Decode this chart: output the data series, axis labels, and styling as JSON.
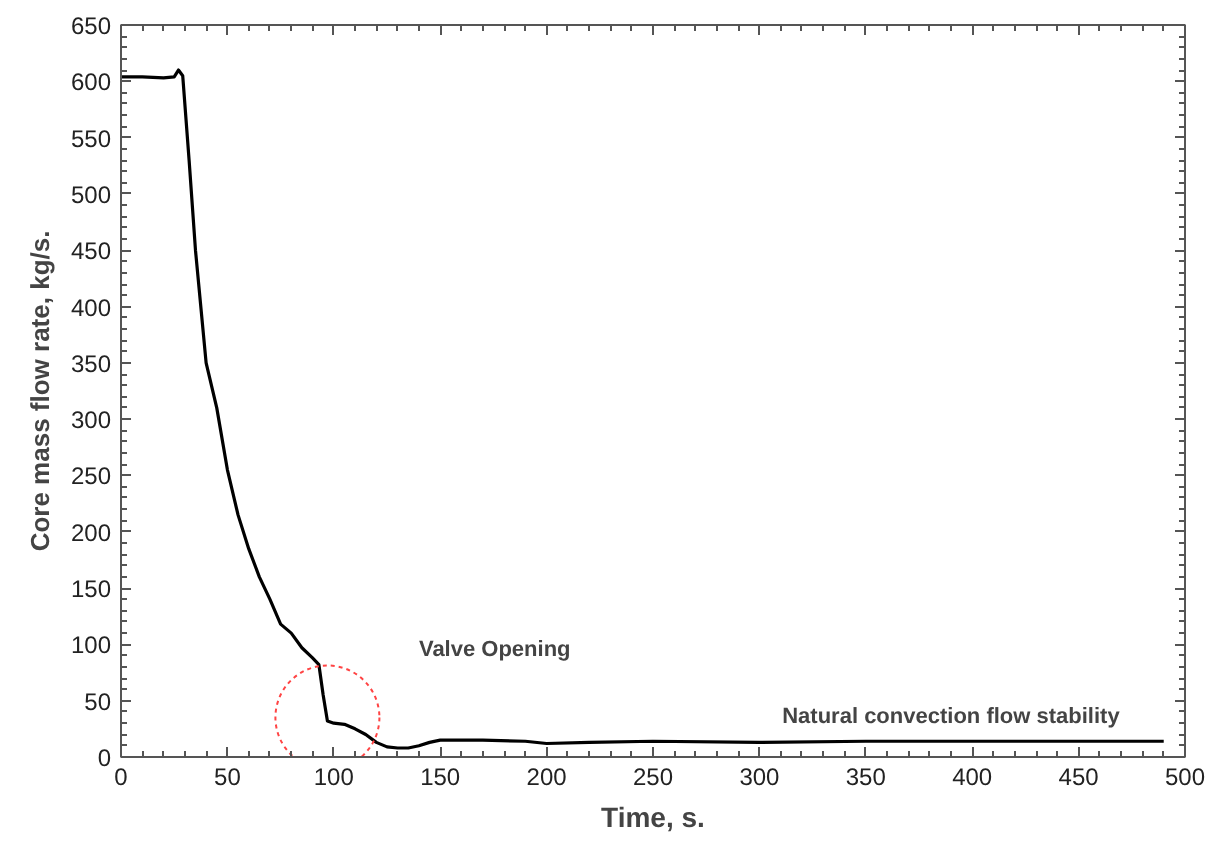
{
  "chart_data": {
    "type": "line",
    "xlabel": "Time, s.",
    "ylabel": "Core mass flow rate, kg/s.",
    "xlim": [
      0,
      500
    ],
    "ylim": [
      0,
      650
    ],
    "xticks": [
      0,
      50,
      100,
      150,
      200,
      250,
      300,
      350,
      400,
      450,
      500
    ],
    "yticks": [
      0,
      50,
      100,
      150,
      200,
      250,
      300,
      350,
      400,
      450,
      500,
      550,
      600,
      650
    ],
    "grid": false,
    "marker": "none",
    "line_style": "solid",
    "series": [
      {
        "color": "#000000",
        "x": [
          0,
          10,
          20,
          25,
          27,
          29,
          32,
          35,
          40,
          45,
          50,
          55,
          60,
          65,
          70,
          75,
          80,
          85,
          90,
          93,
          95,
          97,
          100,
          105,
          110,
          115,
          120,
          125,
          130,
          135,
          140,
          145,
          150,
          170,
          190,
          200,
          220,
          250,
          300,
          350,
          400,
          450,
          490
        ],
        "values": [
          604,
          604,
          603,
          604,
          610,
          605,
          530,
          450,
          350,
          310,
          255,
          215,
          185,
          160,
          140,
          118,
          110,
          97,
          88,
          82,
          55,
          32,
          30,
          29,
          25,
          20,
          13,
          9,
          8,
          8,
          10,
          13,
          15,
          15,
          14,
          12,
          13,
          14,
          13,
          14,
          14,
          14,
          14
        ]
      }
    ],
    "annotations": [
      "Valve Opening",
      {
        "text": "Natural convection flow stability",
        "x": 390,
        "y": 14
      }
    ]
  }
}
